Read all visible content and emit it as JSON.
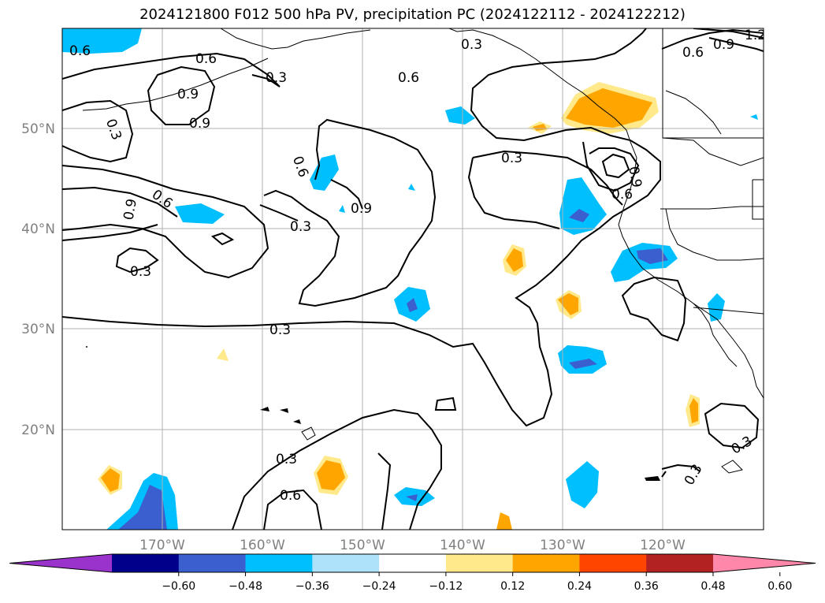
{
  "title": "2024121800 F012 500 hPa PV, precipitation PC (2024122112 - 2024122212)",
  "latitude_labels": [
    "50°N",
    "40°N",
    "30°N",
    "20°N"
  ],
  "longitude_labels": [
    "170°W",
    "160°W",
    "150°W",
    "140°W",
    "130°W",
    "120°W"
  ],
  "contour_labels": [
    "0.6",
    "0.6",
    "0.3",
    "0.6",
    "0.3",
    "0.9",
    "0.6",
    "0.9",
    "1.2",
    "0.3",
    "0.9",
    "0.9",
    "0.6",
    "0.3",
    "0.6",
    "0.9",
    "0.3",
    "0.3",
    "0.9",
    "0.6",
    "0.3",
    "0.3",
    "0.6",
    "0.3",
    "0.3"
  ],
  "colorbar": {
    "tick_labels": [
      "−0.60",
      "−0.48",
      "−0.36",
      "−0.24",
      "−0.12",
      "0.12",
      "0.24",
      "0.36",
      "0.48",
      "0.60"
    ],
    "colors": [
      "#9933cc",
      "#00008b",
      "#3b5fcf",
      "#00bfff",
      "#aee2fa",
      "#ffffff",
      "#ffe98a",
      "#ffa500",
      "#ff4500",
      "#b22222",
      "#ff88aa"
    ]
  }
}
